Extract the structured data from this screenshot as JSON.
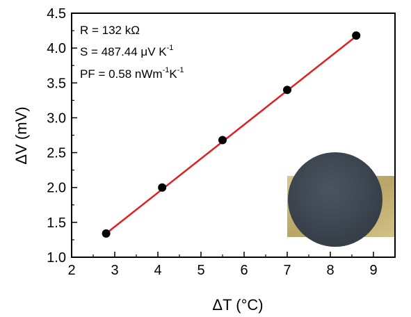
{
  "chart_data": {
    "type": "scatter",
    "title": "",
    "xlabel": "ΔT (°C)",
    "ylabel": "ΔV (mV)",
    "xlim": [
      2,
      9.5
    ],
    "ylim": [
      1.0,
      4.5
    ],
    "x_ticks": [
      "2",
      "3",
      "4",
      "5",
      "6",
      "7",
      "8",
      "9"
    ],
    "y_ticks": [
      "1.0",
      "1.5",
      "2.0",
      "2.5",
      "3.0",
      "3.5",
      "4.0",
      "4.5"
    ],
    "grid": false,
    "series": [
      {
        "marker": "circle",
        "color": "#000000",
        "x": [
          2.8,
          4.1,
          5.5,
          7.0,
          8.6
        ],
        "y": [
          1.34,
          2.0,
          2.68,
          3.4,
          4.18
        ]
      }
    ],
    "fit_line": {
      "color": "#e02020",
      "x": [
        2.8,
        8.6
      ],
      "y": [
        1.34,
        4.17
      ]
    },
    "annotations": {
      "resistance": "R = 132 kΩ",
      "seebeck_prefix": "S = 487.44 μV K",
      "seebeck_sup": "-1",
      "pf_prefix": "PF = 0.58 nWm",
      "pf_sup1": "-1",
      "pf_mid": "K",
      "pf_sup2": "-1"
    },
    "inset": {
      "disk_color": "#3d4650",
      "substrate_color": "#c9b678"
    }
  }
}
